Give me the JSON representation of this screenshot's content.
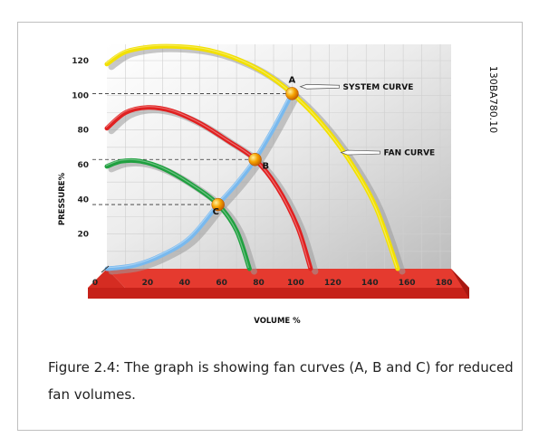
{
  "chart_data": {
    "type": "line",
    "xlabel": "VOLUME %",
    "ylabel": "PRESSURE%",
    "xlim": [
      0,
      180
    ],
    "ylim": [
      0,
      130
    ],
    "x_ticks": [
      "0",
      "20",
      "40",
      "60",
      "80",
      "100",
      "120",
      "140",
      "160",
      "180"
    ],
    "y_ticks": [
      "20",
      "40",
      "60",
      "80",
      "100",
      "120"
    ],
    "grid": true,
    "series": [
      {
        "name": "",
        "color": "#f2e000",
        "points": [
          [
            0,
            118
          ],
          [
            10,
            125
          ],
          [
            25,
            128
          ],
          [
            40,
            128
          ],
          [
            55,
            126
          ],
          [
            70,
            121
          ],
          [
            85,
            113
          ],
          [
            100,
            101
          ],
          [
            115,
            85
          ],
          [
            130,
            64
          ],
          [
            145,
            36
          ],
          [
            157,
            0
          ]
        ]
      },
      {
        "name": "",
        "color": "#e02020",
        "points": [
          [
            0,
            81
          ],
          [
            10,
            90
          ],
          [
            22,
            93
          ],
          [
            35,
            91
          ],
          [
            50,
            84
          ],
          [
            65,
            74
          ],
          [
            80,
            63
          ],
          [
            92,
            47
          ],
          [
            103,
            24
          ],
          [
            110,
            0
          ]
        ]
      },
      {
        "name": "",
        "color": "#20a040",
        "points": [
          [
            0,
            59
          ],
          [
            8,
            62
          ],
          [
            18,
            62
          ],
          [
            30,
            58
          ],
          [
            45,
            49
          ],
          [
            60,
            37
          ],
          [
            70,
            22
          ],
          [
            77,
            0
          ]
        ]
      },
      {
        "name": "SYSTEM CURVE",
        "color": "#79b9ee",
        "points": [
          [
            0,
            0
          ],
          [
            15,
            2
          ],
          [
            30,
            8
          ],
          [
            45,
            18
          ],
          [
            60,
            37
          ],
          [
            70,
            49
          ],
          [
            80,
            63
          ],
          [
            90,
            81
          ],
          [
            100,
            101
          ]
        ]
      }
    ],
    "points": [
      {
        "label": "A",
        "x": 100,
        "y": 101
      },
      {
        "label": "B",
        "x": 80,
        "y": 63
      },
      {
        "label": "C",
        "x": 60,
        "y": 37
      }
    ],
    "annotations": [
      {
        "text": "SYSTEM CURVE",
        "x": 102,
        "y": 105
      },
      {
        "text": "FAN CURVE",
        "x": 124,
        "y": 67
      }
    ],
    "code": "130BA780.10"
  },
  "caption": "Figure 2.4: The graph is showing fan curves (A, B and C) for reduced fan volumes."
}
